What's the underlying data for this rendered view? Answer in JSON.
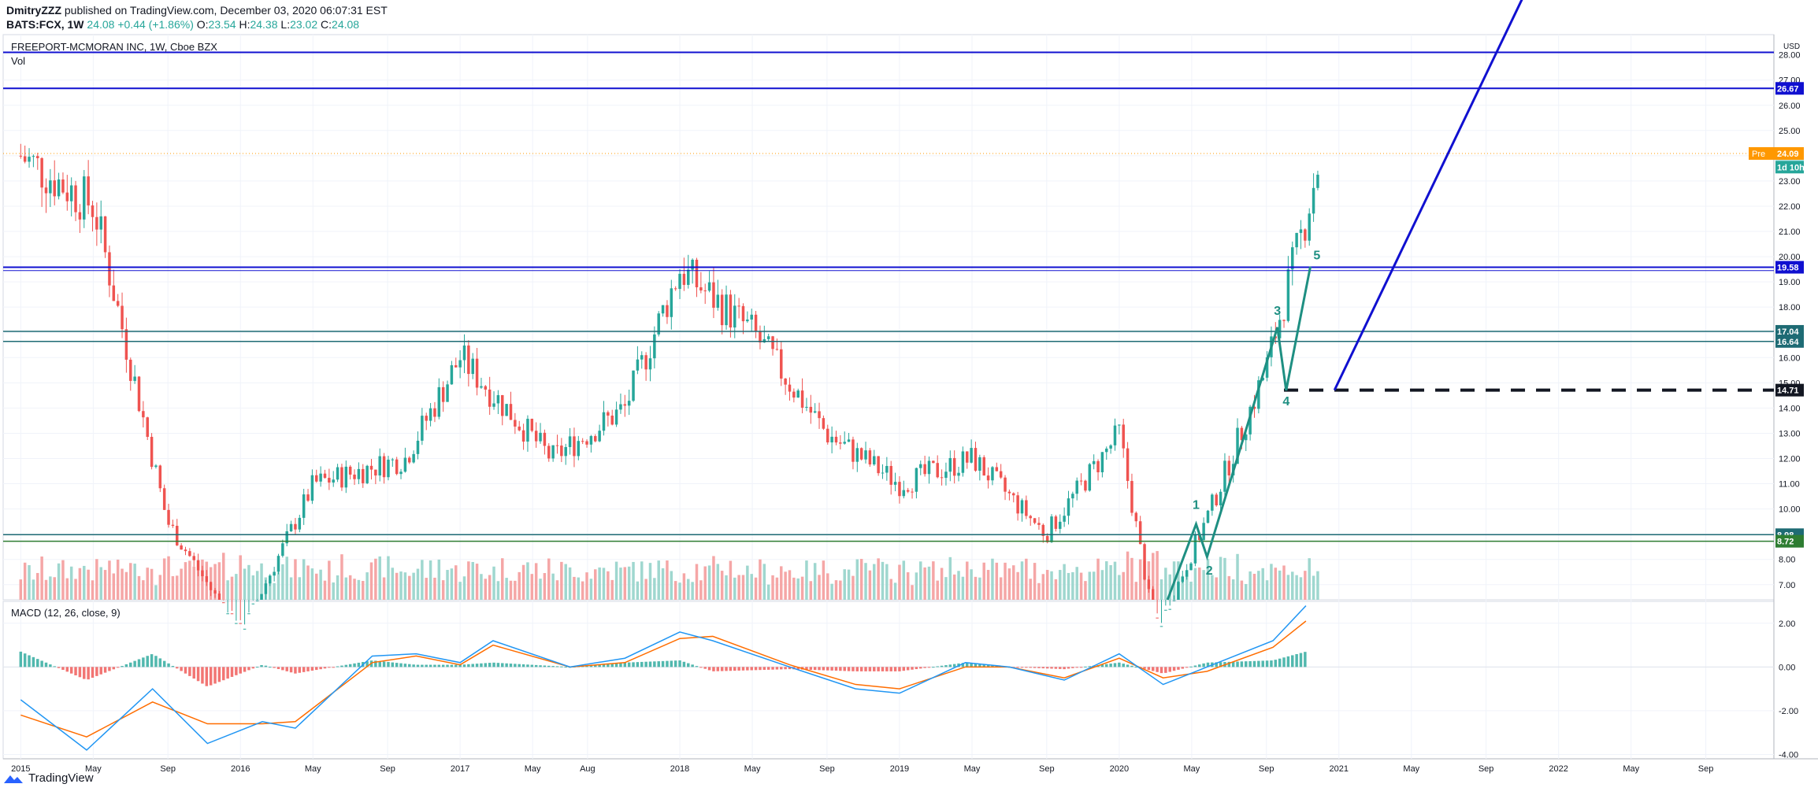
{
  "header": {
    "author": "DmitryZZZ",
    "published_text": "published on TradingView.com, December 03, 2020 06:07:31 EST",
    "symbol": "BATS:FCX, 1W",
    "last": "24.08",
    "change": "+0.44 (+1.86%)",
    "o_label": "O:",
    "o_value": "23.54",
    "h_label": "H:",
    "h_value": "24.38",
    "l_label": "L:",
    "l_value": "23.02",
    "c_label": "C:",
    "c_value": "24.08"
  },
  "pane_titles": {
    "main": "FREEPORT-MCMORAN INC, 1W, Cboe BZX",
    "vol": "Vol",
    "macd": "MACD (12, 26, close, 9)"
  },
  "footer": {
    "brand": "TradingView"
  },
  "colors": {
    "up": "#26a69a",
    "down": "#ef5350",
    "vol_up": "#9fd7cf",
    "vol_down": "#f5a6a6",
    "level_blue": "#1010d0",
    "level_teal": "#1e6b74",
    "level_green": "#2e7d32",
    "wave": "#1e8f82",
    "macd_line": "#2196f3",
    "signal_line": "#ff6d00"
  },
  "chart_data": [
    {
      "type": "candlestick",
      "panel": "price",
      "currency": "USD",
      "timeframe": "1W",
      "ylim": [
        6.4,
        28.8
      ],
      "y_ticks": [
        "7.00",
        "8.00",
        "9.00",
        "10.00",
        "11.00",
        "12.00",
        "13.00",
        "14.00",
        "15.00",
        "16.00",
        "17.00",
        "18.00",
        "19.00",
        "20.00",
        "21.00",
        "22.00",
        "23.00",
        "24.00",
        "25.00",
        "26.00",
        "27.00",
        "28.00"
      ],
      "x_ticks": [
        "2015",
        "May",
        "Sep",
        "2016",
        "May",
        "Sep",
        "2017",
        "May",
        "Aug",
        "2018",
        "May",
        "Sep",
        "2019",
        "May",
        "Sep",
        "2020",
        "May",
        "Sep",
        "2021",
        "May",
        "Sep",
        "2022",
        "May",
        "Sep"
      ],
      "key_closes_approx": [
        {
          "date": "2015-01",
          "close": 24.0
        },
        {
          "date": "2015-05",
          "close": 22.0
        },
        {
          "date": "2015-09",
          "close": 9.5
        },
        {
          "date": "2016-01",
          "close": 5.0
        },
        {
          "date": "2016-05",
          "close": 11.0
        },
        {
          "date": "2016-10",
          "close": 12.0
        },
        {
          "date": "2017-01",
          "close": 16.0
        },
        {
          "date": "2017-06",
          "close": 12.0
        },
        {
          "date": "2017-10",
          "close": 14.0
        },
        {
          "date": "2018-01",
          "close": 19.5
        },
        {
          "date": "2018-05",
          "close": 17.0
        },
        {
          "date": "2018-09",
          "close": 13.0
        },
        {
          "date": "2019-01",
          "close": 11.0
        },
        {
          "date": "2019-05",
          "close": 12.0
        },
        {
          "date": "2019-09",
          "close": 9.0
        },
        {
          "date": "2020-01",
          "close": 13.0
        },
        {
          "date": "2020-03",
          "close": 5.0
        },
        {
          "date": "2020-06",
          "close": 10.0
        },
        {
          "date": "2020-09",
          "close": 15.5
        },
        {
          "date": "2020-11",
          "close": 21.0
        },
        {
          "date": "2020-12",
          "close": 24.08
        }
      ],
      "price_labels": [
        {
          "text": "26.67",
          "price": 26.67,
          "color": "#1010d0"
        },
        {
          "text": "24.08",
          "price": 24.08,
          "color": "#26a69a"
        },
        {
          "text": "1d 10h",
          "price": 23.55,
          "color": "#26a69a"
        },
        {
          "text": "19.58",
          "price": 19.58,
          "color": "#1010d0"
        },
        {
          "text": "17.04",
          "price": 17.04,
          "color": "#1e6b74"
        },
        {
          "text": "16.64",
          "price": 16.64,
          "color": "#1e6b74"
        },
        {
          "text": "14.71",
          "price": 14.71,
          "color": "#131722"
        },
        {
          "text": "8.98",
          "price": 8.98,
          "color": "#1e6b74"
        },
        {
          "text": "8.72",
          "price": 8.72,
          "color": "#2e7d32"
        }
      ],
      "premarket": {
        "label": "Pre",
        "value": "24.09",
        "price": 24.09
      },
      "wave_labels": [
        "1",
        "2",
        "3",
        "4",
        "5"
      ]
    },
    {
      "type": "bar",
      "panel": "volume",
      "name": "Vol"
    },
    {
      "type": "line",
      "panel": "macd",
      "params": "12, 26, close, 9",
      "ylim": [
        -4.2,
        3.0
      ],
      "y_ticks": [
        "2.00",
        "0.00",
        "-2.00",
        "-4.00"
      ],
      "series": [
        {
          "name": "MACD",
          "points": [
            [
              2015.0,
              -1.5
            ],
            [
              2015.3,
              -3.8
            ],
            [
              2015.6,
              -1.0
            ],
            [
              2015.85,
              -3.5
            ],
            [
              2016.1,
              -2.5
            ],
            [
              2016.25,
              -2.8
            ],
            [
              2016.6,
              0.5
            ],
            [
              2016.8,
              0.6
            ],
            [
              2017.0,
              0.2
            ],
            [
              2017.15,
              1.2
            ],
            [
              2017.5,
              0.0
            ],
            [
              2017.75,
              0.4
            ],
            [
              2018.0,
              1.6
            ],
            [
              2018.15,
              1.2
            ],
            [
              2018.5,
              0.0
            ],
            [
              2018.8,
              -1.0
            ],
            [
              2019.0,
              -1.2
            ],
            [
              2019.3,
              0.2
            ],
            [
              2019.5,
              0.0
            ],
            [
              2019.75,
              -0.6
            ],
            [
              2020.0,
              0.6
            ],
            [
              2020.2,
              -0.8
            ],
            [
              2020.4,
              0.0
            ],
            [
              2020.7,
              1.2
            ],
            [
              2020.85,
              2.8
            ]
          ]
        },
        {
          "name": "Signal",
          "points": [
            [
              2015.0,
              -2.2
            ],
            [
              2015.3,
              -3.2
            ],
            [
              2015.6,
              -1.6
            ],
            [
              2015.85,
              -2.6
            ],
            [
              2016.1,
              -2.6
            ],
            [
              2016.25,
              -2.5
            ],
            [
              2016.6,
              0.2
            ],
            [
              2016.8,
              0.5
            ],
            [
              2017.0,
              0.1
            ],
            [
              2017.15,
              1.0
            ],
            [
              2017.5,
              0.0
            ],
            [
              2017.75,
              0.2
            ],
            [
              2018.0,
              1.3
            ],
            [
              2018.15,
              1.4
            ],
            [
              2018.5,
              0.1
            ],
            [
              2018.8,
              -0.8
            ],
            [
              2019.0,
              -1.0
            ],
            [
              2019.3,
              0.0
            ],
            [
              2019.5,
              0.0
            ],
            [
              2019.75,
              -0.5
            ],
            [
              2020.0,
              0.4
            ],
            [
              2020.2,
              -0.5
            ],
            [
              2020.4,
              -0.2
            ],
            [
              2020.7,
              0.9
            ],
            [
              2020.85,
              2.1
            ]
          ]
        }
      ]
    }
  ]
}
